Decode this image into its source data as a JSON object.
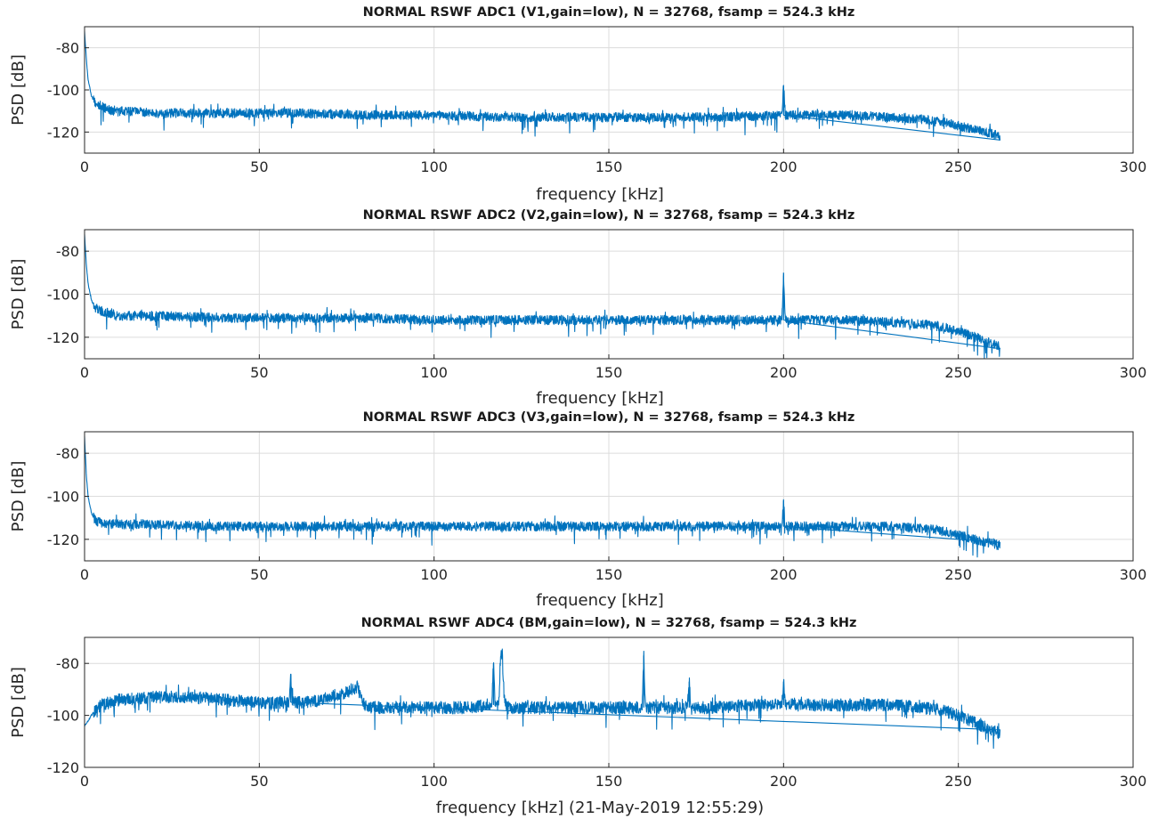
{
  "colors": {
    "series": "#0072bd",
    "grid": "#dcdcdc",
    "axes": "#262626"
  },
  "chart_data": [
    {
      "type": "line",
      "title": "NORMAL RSWF ADC1 (V1,gain=low), N = 32768, fsamp = 524.3 kHz",
      "xlabel": "frequency [kHz]",
      "ylabel": "PSD [dB]",
      "xlim": [
        0,
        300
      ],
      "ylim": [
        -130,
        -70
      ],
      "xticks": [
        0,
        50,
        100,
        150,
        200,
        250,
        300
      ],
      "yticks": [
        -80,
        -100,
        -120
      ],
      "grid": true,
      "series": [
        {
          "x": [
            0,
            0.5,
            1,
            2,
            3,
            5,
            8,
            10,
            20,
            40,
            60,
            80,
            100,
            120,
            140,
            160,
            180,
            199.5,
            200,
            200.5,
            220,
            230,
            240,
            245,
            250,
            255,
            260,
            262
          ],
          "y": [
            -72,
            -85,
            -95,
            -103,
            -106,
            -108,
            -110,
            -110,
            -111,
            -111,
            -111,
            -112,
            -112,
            -113,
            -113,
            -113,
            -113,
            -112,
            -98,
            -112,
            -112,
            -113,
            -114,
            -115,
            -117,
            -119,
            -121,
            -122
          ]
        }
      ]
    },
    {
      "type": "line",
      "title": "NORMAL RSWF ADC2 (V2,gain=low), N = 32768, fsamp = 524.3 kHz",
      "xlabel": "frequency [kHz]",
      "ylabel": "PSD [dB]",
      "xlim": [
        0,
        300
      ],
      "ylim": [
        -130,
        -70
      ],
      "xticks": [
        0,
        50,
        100,
        150,
        200,
        250,
        300
      ],
      "yticks": [
        -80,
        -100,
        -120
      ],
      "grid": true,
      "series": [
        {
          "x": [
            0,
            0.5,
            1,
            2,
            3,
            5,
            8,
            10,
            20,
            40,
            60,
            80,
            100,
            120,
            140,
            160,
            180,
            199.5,
            200,
            200.5,
            220,
            230,
            240,
            245,
            250,
            255,
            260,
            262
          ],
          "y": [
            -72,
            -86,
            -95,
            -103,
            -106,
            -108,
            -109,
            -110,
            -110,
            -111,
            -111,
            -111,
            -112,
            -112,
            -112,
            -112,
            -112,
            -112,
            -90,
            -112,
            -112,
            -113,
            -114,
            -115,
            -117,
            -120,
            -123,
            -124
          ]
        }
      ]
    },
    {
      "type": "line",
      "title": "NORMAL RSWF ADC3 (V3,gain=low), N = 32768, fsamp = 524.3 kHz",
      "xlabel": "frequency [kHz]",
      "ylabel": "PSD [dB]",
      "xlim": [
        0,
        300
      ],
      "ylim": [
        -130,
        -70
      ],
      "xticks": [
        0,
        50,
        100,
        150,
        200,
        250,
        300
      ],
      "yticks": [
        -80,
        -100,
        -120
      ],
      "grid": true,
      "series": [
        {
          "x": [
            0,
            0.5,
            1,
            2,
            3,
            5,
            8,
            10,
            20,
            40,
            60,
            80,
            100,
            120,
            140,
            160,
            180,
            199.5,
            200,
            200.5,
            220,
            230,
            240,
            245,
            250,
            255,
            260,
            262
          ],
          "y": [
            -72,
            -90,
            -100,
            -108,
            -111,
            -113,
            -113,
            -113,
            -113,
            -114,
            -114,
            -114,
            -114,
            -114,
            -114,
            -114,
            -114,
            -114,
            -102,
            -114,
            -114,
            -114,
            -115,
            -116,
            -118,
            -120,
            -122,
            -123
          ]
        }
      ]
    },
    {
      "type": "line",
      "title": "NORMAL RSWF ADC4 (BM,gain=low), N = 32768, fsamp = 524.3 kHz",
      "xlabel": "frequency [kHz] (21-May-2019 12:55:29)",
      "ylabel": "PSD [dB]",
      "xlim": [
        0,
        300
      ],
      "ylim": [
        -120,
        -70
      ],
      "xticks": [
        0,
        50,
        100,
        150,
        200,
        250,
        300
      ],
      "yticks": [
        -80,
        -100,
        -120
      ],
      "grid": true,
      "series": [
        {
          "x": [
            0,
            1,
            3,
            5,
            10,
            20,
            30,
            40,
            50,
            58.5,
            59,
            59.5,
            65,
            70,
            75,
            78,
            80,
            82,
            90,
            100,
            110,
            115,
            116.5,
            117,
            117.5,
            118.5,
            119,
            119.5,
            120,
            120.5,
            121,
            130,
            140,
            150,
            159.5,
            160,
            160.5,
            170,
            172.5,
            173,
            173.5,
            180,
            190,
            199.5,
            200,
            200.5,
            210,
            220,
            230,
            240,
            245,
            250,
            255,
            260,
            262
          ],
          "y": [
            -104,
            -102,
            -98,
            -96,
            -94,
            -93,
            -93,
            -94,
            -95,
            -95,
            -84,
            -95,
            -95,
            -93,
            -91,
            -89,
            -96,
            -97,
            -97,
            -97,
            -97,
            -96,
            -96,
            -80,
            -96,
            -96,
            -78,
            -76,
            -92,
            -96,
            -97,
            -97,
            -97,
            -97,
            -97,
            -77,
            -97,
            -97,
            -97,
            -87,
            -97,
            -97,
            -96,
            -96,
            -87,
            -96,
            -96,
            -96,
            -96,
            -97,
            -98,
            -100,
            -103,
            -106,
            -107
          ]
        }
      ]
    }
  ]
}
